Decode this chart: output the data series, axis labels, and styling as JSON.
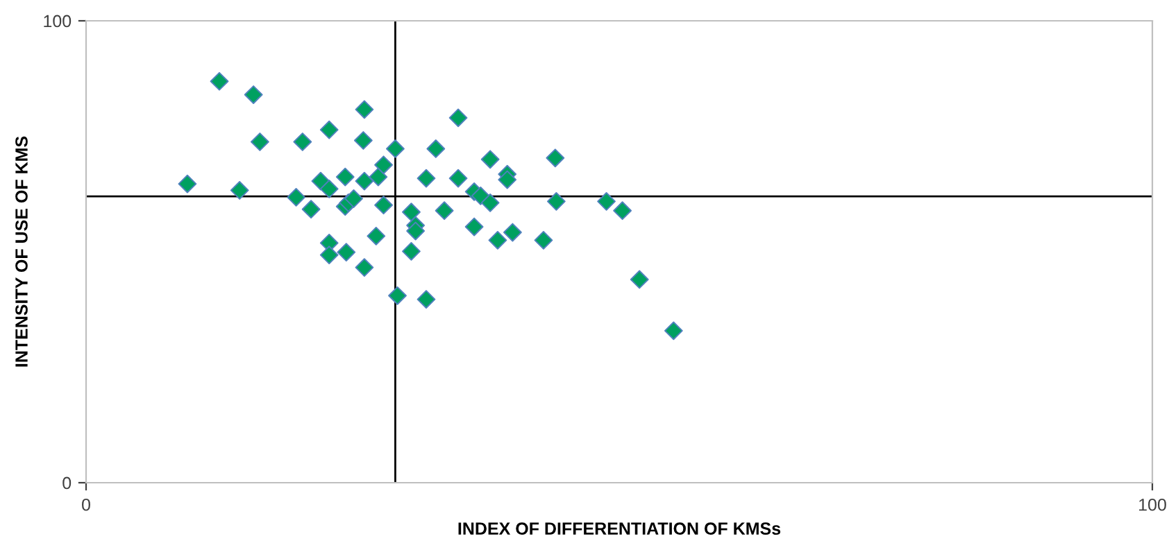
{
  "chart_data": {
    "type": "scatter",
    "xlabel": "INDEX OF DIFFERENTIATION OF KMSs",
    "ylabel": "INTENSITY OF USE OF KMS",
    "marker": "diamond",
    "grid": false,
    "legend": false,
    "xlim": [
      0,
      100
    ],
    "ylim": [
      0,
      100
    ],
    "xticks": [
      0,
      100
    ],
    "yticks": [
      0,
      100
    ],
    "ref_lines": [
      {
        "axis": "x",
        "value": 29,
        "color": "#000000"
      },
      {
        "axis": "y",
        "value": 62,
        "color": "#000000"
      }
    ],
    "series": [
      {
        "color": "#00a060",
        "x": [
          9.5,
          12.5,
          14.4,
          15.7,
          16.3,
          19.7,
          20.3,
          21.1,
          22.0,
          22.8,
          22.8,
          22.8,
          22.8,
          24.3,
          24.3,
          24.4,
          24.6,
          25.1,
          26.0,
          26.1,
          26.1,
          26.1,
          27.2,
          27.4,
          27.9,
          27.9,
          29.0,
          29.2,
          30.5,
          30.5,
          30.9,
          30.9,
          31.9,
          31.9,
          32.8,
          33.6,
          34.9,
          34.9,
          36.4,
          36.4,
          37.0,
          37.9,
          37.9,
          38.6,
          39.5,
          39.5,
          40.0,
          42.9,
          44.0,
          44.1,
          48.8,
          50.3,
          51.9,
          55.1
        ],
        "values": [
          64.7,
          86.9,
          63.3,
          84.0,
          73.8,
          61.8,
          73.8,
          59.2,
          65.3,
          76.4,
          63.6,
          51.9,
          49.3,
          66.2,
          59.8,
          49.9,
          60.6,
          61.5,
          74.1,
          80.8,
          65.3,
          46.6,
          53.4,
          66.2,
          68.8,
          60.1,
          72.3,
          40.5,
          58.6,
          50.1,
          55.7,
          54.5,
          65.9,
          39.7,
          72.3,
          58.9,
          79.0,
          65.9,
          63.0,
          55.4,
          62.1,
          70.0,
          60.6,
          52.5,
          66.8,
          65.6,
          54.2,
          52.5,
          70.3,
          60.9,
          60.9,
          58.9,
          44.0,
          32.9
        ]
      }
    ]
  }
}
